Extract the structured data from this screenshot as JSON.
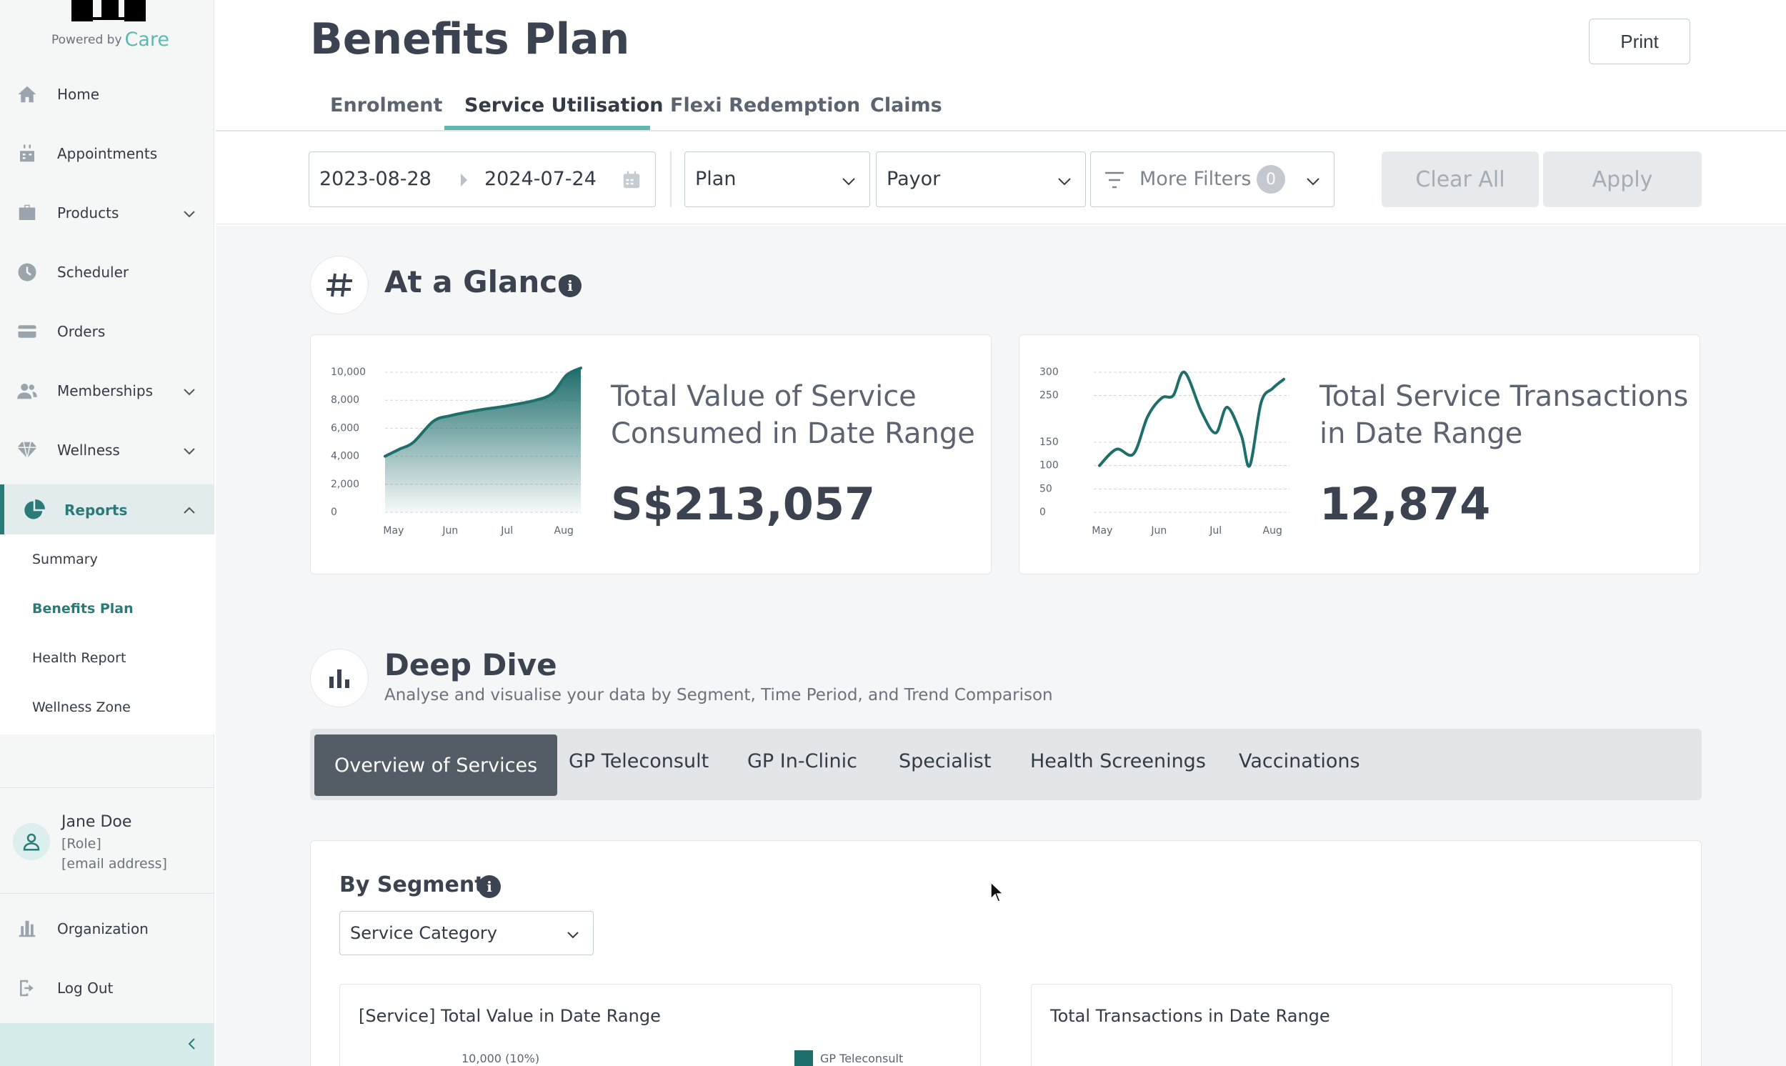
{
  "brand": {
    "powered_by": "Powered by",
    "care": "Care"
  },
  "sidebar": {
    "items": [
      {
        "label": "Home",
        "icon": "home-icon"
      },
      {
        "label": "Appointments",
        "icon": "calendar-icon"
      },
      {
        "label": "Products",
        "icon": "briefcase-icon"
      },
      {
        "label": "Scheduler",
        "icon": "clock-icon"
      },
      {
        "label": "Orders",
        "icon": "credit-card-icon"
      },
      {
        "label": "Memberships",
        "icon": "users-icon"
      },
      {
        "label": "Wellness",
        "icon": "diamond-icon"
      },
      {
        "label": "Reports",
        "icon": "pie-chart-icon"
      }
    ],
    "reports_sub": [
      "Summary",
      "Benefits Plan",
      "Health Report",
      "Wellness Zone"
    ],
    "user": {
      "name": "Jane Doe",
      "role": "[Role]",
      "email": "[email address]"
    },
    "bottom": [
      {
        "label": "Organization",
        "icon": "building-icon"
      },
      {
        "label": "Log Out",
        "icon": "logout-icon"
      }
    ]
  },
  "header": {
    "title": "Benefits Plan",
    "print_label": "Print",
    "tabs": [
      "Enrolment",
      "Service Utilisation",
      "Flexi Redemption",
      "Claims"
    ],
    "active_tab": "Service Utilisation"
  },
  "filters": {
    "date_start": "2023-08-28",
    "date_end": "2024-07-24",
    "plan": "Plan",
    "payor": "Payor",
    "more_filters": "More Filters",
    "more_filters_count": "0",
    "clear_all": "Clear All",
    "apply": "Apply"
  },
  "glance": {
    "title": "At a Glance",
    "value_card": {
      "title": "Total Value of Service Consumed in Date Range",
      "value": "S$213,057"
    },
    "transactions_card": {
      "title": "Total Service Transactions in Date Range",
      "value": "12,874"
    }
  },
  "deep_dive": {
    "title": "Deep Dive",
    "subtitle": "Analyse and visualise your data by Segment, Time Period, and Trend Comparison",
    "tabs": [
      "Overview of Services",
      "GP Teleconsult",
      "GP In-Clinic",
      "Specialist",
      "Health Screenings",
      "Vaccinations"
    ],
    "active_tab": "Overview of Services"
  },
  "segment": {
    "title": "By Segment",
    "select": "Service Category",
    "left_chart_title": "[Service] Total Value in Date Range",
    "right_chart_title": "Total Transactions in Date Range",
    "left_tick": "10,000 (10%)",
    "legend": "GP Teleconsult"
  },
  "colors": {
    "accent": "#2a7a78",
    "accent_light": "#5fb9b0",
    "chart_line": "#1e6e6b"
  },
  "chart_data": [
    {
      "type": "area",
      "x": [
        "May",
        "Jun",
        "Jul",
        "Aug"
      ],
      "x_values": [
        0,
        1,
        2,
        3.3
      ],
      "points": [
        [
          -0.15,
          4000
        ],
        [
          0.1,
          4500
        ],
        [
          0.35,
          5000
        ],
        [
          0.7,
          6500
        ],
        [
          1.0,
          6900
        ],
        [
          1.5,
          7300
        ],
        [
          2.0,
          7600
        ],
        [
          2.5,
          8000
        ],
        [
          2.8,
          8500
        ],
        [
          3.05,
          9800
        ],
        [
          3.3,
          10300
        ]
      ],
      "ylim": [
        0,
        10000
      ],
      "yticks": [
        "10,000",
        "8,000",
        "6,000",
        "4,000",
        "2,000",
        "0"
      ],
      "ytick_values": [
        10000,
        8000,
        6000,
        4000,
        2000,
        0
      ]
    },
    {
      "type": "line",
      "x": [
        "May",
        "Jun",
        "Jul",
        "Aug"
      ],
      "points": [
        [
          -0.05,
          100
        ],
        [
          0.25,
          135
        ],
        [
          0.55,
          125
        ],
        [
          0.8,
          205
        ],
        [
          1.05,
          245
        ],
        [
          1.25,
          250
        ],
        [
          1.45,
          300
        ],
        [
          1.75,
          215
        ],
        [
          2.0,
          170
        ],
        [
          2.2,
          225
        ],
        [
          2.45,
          165
        ],
        [
          2.6,
          100
        ],
        [
          2.8,
          235
        ],
        [
          3.0,
          265
        ],
        [
          3.2,
          285
        ]
      ],
      "ylim": [
        0,
        300
      ],
      "yticks": [
        "300",
        "250",
        "150",
        "100",
        "50",
        "0"
      ],
      "ytick_values": [
        300,
        250,
        150,
        100,
        50,
        0
      ]
    }
  ]
}
